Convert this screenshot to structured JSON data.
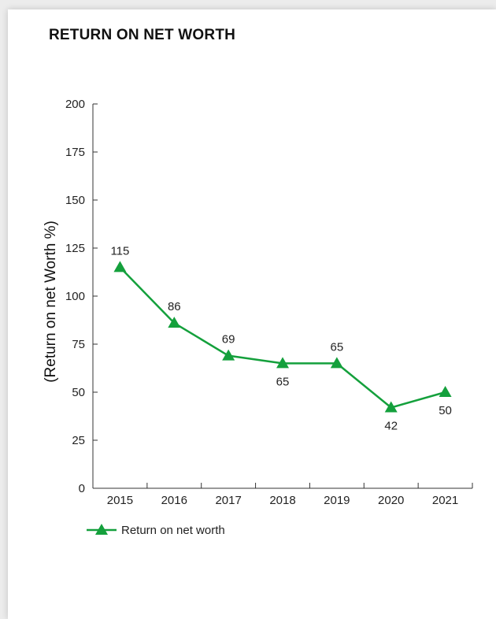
{
  "chart_data": {
    "type": "line",
    "title": "RETURN ON NET WORTH",
    "ylabel": "(Return on net Worth %)",
    "xlabel": "",
    "categories": [
      "2015",
      "2016",
      "2017",
      "2018",
      "2019",
      "2020",
      "2021"
    ],
    "ylim": [
      0,
      200
    ],
    "yticks": [
      0,
      25,
      50,
      75,
      100,
      125,
      150,
      175,
      200
    ],
    "series": [
      {
        "name": "Return on net worth",
        "values": [
          115,
          86,
          69,
          65,
          65,
          42,
          50
        ],
        "labels": [
          "115",
          "86",
          "69",
          "65",
          "65",
          "42",
          "50"
        ],
        "label_positions": [
          "above",
          "above",
          "above",
          "below",
          "above",
          "below",
          "below"
        ],
        "color": "#14a03c",
        "marker": "triangle"
      }
    ],
    "grid": false,
    "legend": "bottom-left"
  }
}
